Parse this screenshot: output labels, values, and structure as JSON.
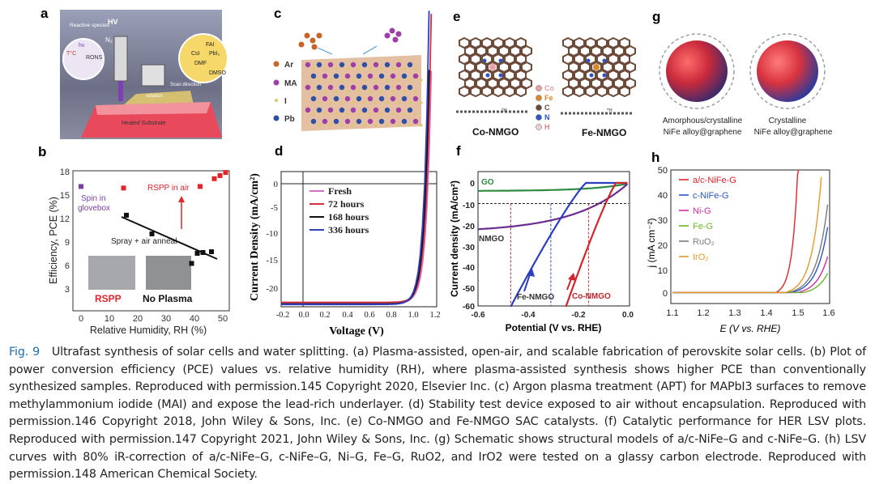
{
  "panels": {
    "a": {
      "label": "a",
      "hv": "HV",
      "n2": "N₂",
      "reactive": "Reactive species",
      "rons": "RONS",
      "temp": "T°C",
      "hv_light": "hν",
      "solution": "solution",
      "scan": "Scan direction",
      "substrate": "Heated Substrate",
      "chem": [
        "FAI",
        "CsI",
        "PbI₂",
        "DMF",
        "DMSO"
      ]
    },
    "b": {
      "label": "b",
      "ylabel": "Efficiency, PCE (%)",
      "xlabel": "Relative Humidity, RH (%)",
      "spin": "Spin in glovebox",
      "rspp_air": "RSPP in air",
      "spray": "Spray + air anneal",
      "rspp": "RSPP",
      "noplasma": "No Plasma",
      "yticks": [
        "18",
        "15",
        "12",
        "9",
        "6",
        "3"
      ],
      "xticks": [
        "0",
        "10",
        "20",
        "30",
        "40",
        "50"
      ]
    },
    "c": {
      "label": "c",
      "legend": [
        "Ar",
        "MA",
        "I",
        "Pb"
      ],
      "colors": [
        "#c8642a",
        "#9c3fa6",
        "#d9c86a",
        "#2e4fa3"
      ]
    },
    "d": {
      "label": "d",
      "ylabel": "Current Density (mA/cm²)",
      "xlabel": "Voltage (V)",
      "legend": [
        "Fresh",
        "72 hours",
        "168 hours",
        "336 hours"
      ],
      "colors": [
        "#d070c0",
        "#d03040",
        "#111111",
        "#2f3fbf"
      ],
      "yticks": [
        "0",
        "-5",
        "-10",
        "-15",
        "-20"
      ],
      "xticks": [
        "-0.2",
        "0.0",
        "0.2",
        "0.4",
        "0.6",
        "0.8",
        "1.0",
        "1.2"
      ]
    },
    "e": {
      "label": "e",
      "co": "Co-NMGO",
      "fe": "Fe-NMGO",
      "h1": "*H",
      "h2": "*H",
      "legend": [
        "Co",
        "Fe",
        "C",
        "N",
        "H"
      ]
    },
    "f": {
      "label": "f",
      "ylabel": "Current density (mA/cm²)",
      "xlabel": "Potential (V vs. RHE)",
      "go": "GO",
      "nmgo": "NMGO",
      "fe": "Fe-NMGO",
      "co": "Co-NMGO",
      "yticks": [
        "0",
        "-10",
        "-20",
        "-30",
        "-40",
        "-50",
        "-60"
      ],
      "xticks": [
        "-0.6",
        "-0.4",
        "-0.2",
        "0.0"
      ]
    },
    "g": {
      "label": "g",
      "cap1a": "Amorphous/crystalline",
      "cap1b": "NiFe alloy@graphene",
      "cap2a": "Crystalline",
      "cap2b": "NiFe alloy@graphene"
    },
    "h": {
      "label": "h",
      "ylabel": "j (mA cm⁻²)",
      "xlabel": "E (V vs. RHE)",
      "legend": [
        "a/c-NiFe-G",
        "c-NiFe-G",
        "Ni-G",
        "Fe-G",
        "RuO₂",
        "IrO₂"
      ],
      "colors": [
        "#e0252b",
        "#2b56c9",
        "#d02ea0",
        "#6cb32e",
        "#7b7b7b",
        "#e39a2a"
      ],
      "yticks": [
        "50",
        "40",
        "30",
        "20",
        "10",
        "0"
      ],
      "xticks": [
        "1.1",
        "1.2",
        "1.3",
        "1.4",
        "1.5",
        "1.6"
      ]
    }
  },
  "chart_data": [
    {
      "type": "scatter",
      "panel": "b",
      "title": "",
      "xlabel": "Relative Humidity, RH (%)",
      "ylabel": "Efficiency, PCE (%)",
      "xlim": [
        -2,
        53
      ],
      "ylim": [
        0,
        18
      ],
      "series": [
        {
          "name": "Spin in glovebox",
          "color": "#7b3fa6",
          "x": [
            0
          ],
          "y": [
            16
          ]
        },
        {
          "name": "RSPP in air",
          "color": "#e0252b",
          "x": [
            15,
            42,
            47,
            49,
            51
          ],
          "y": [
            15.8,
            16,
            17,
            17.4,
            17.8
          ]
        },
        {
          "name": "Spray + air anneal",
          "color": "#111111",
          "x": [
            16,
            25,
            39,
            41,
            43,
            46
          ],
          "y": [
            12.3,
            9.9,
            6.1,
            7.4,
            7.5,
            7.6
          ]
        }
      ]
    },
    {
      "type": "line",
      "panel": "d",
      "xlabel": "Voltage (V)",
      "ylabel": "Current Density (mA/cm²)",
      "xlim": [
        -0.2,
        1.2
      ],
      "ylim": [
        -23,
        2
      ],
      "series": [
        {
          "name": "Fresh",
          "voc": 1.13,
          "jsc": -22.3
        },
        {
          "name": "72 hours",
          "voc": 1.12,
          "jsc": -22.2
        },
        {
          "name": "168 hours",
          "voc": 1.11,
          "jsc": -22.5
        },
        {
          "name": "336 hours",
          "voc": 1.1,
          "jsc": -22.6
        }
      ]
    },
    {
      "type": "line",
      "panel": "f",
      "xlabel": "Potential (V vs. RHE)",
      "ylabel": "Current density (mA/cm²)",
      "xlim": [
        -0.6,
        0.0
      ],
      "ylim": [
        -60,
        5
      ],
      "series": [
        {
          "name": "GO",
          "onset": -0.1,
          "limit": -4
        },
        {
          "name": "NMGO",
          "onset": -0.1,
          "limit": -23
        },
        {
          "name": "Fe-NMGO",
          "onset": -0.2,
          "limit": -60
        },
        {
          "name": "Co-NMGO",
          "onset": -0.05,
          "limit": -60
        }
      ],
      "ref_line": -10,
      "ref_x": [
        -0.47,
        -0.31,
        -0.16
      ]
    },
    {
      "type": "line",
      "panel": "h",
      "xlabel": "E (V vs. RHE)",
      "ylabel": "j (mA cm⁻²)",
      "xlim": [
        1.1,
        1.6
      ],
      "ylim": [
        -3,
        50
      ],
      "series": [
        {
          "name": "a/c-NiFe-G",
          "onset": 1.43,
          "end": 1.51
        },
        {
          "name": "c-NiFe-G",
          "onset": 1.48,
          "end": 1.6
        },
        {
          "name": "Ni-G",
          "onset": 1.5,
          "end": 1.6
        },
        {
          "name": "Fe-G",
          "onset": 1.52,
          "end": 1.6
        },
        {
          "name": "RuO₂",
          "onset": 1.47,
          "end": 1.6
        },
        {
          "name": "IrO₂",
          "onset": 1.46,
          "end": 1.58
        }
      ]
    }
  ],
  "caption": {
    "figno": "Fig. 9",
    "text": "Ultrafast synthesis of solar cells and water splitting. (a) Plasma-assisted, open-air, and scalable fabrication of perovskite solar cells. (b) Plot of power conversion efficiency (PCE) values vs. relative humidity (RH), where plasma-assisted synthesis shows higher PCE than conventionally synthesized samples. Reproduced with permission.145 Copyright 2020, Elsevier Inc. (c) Argon plasma treatment (APT) for MAPbI3 surfaces to remove methylammonium iodide (MAI) and expose the lead-rich underlayer. (d) Stability test device exposed to air without encapsulation. Reproduced with permission.146 Copyright 2018, John Wiley & Sons, Inc. (e) Co-NMGO and Fe-NMGO SAC catalysts. (f) Catalytic performance for HER LSV plots. Reproduced with permission.147 Copyright 2021, John Wiley & Sons, Inc. (g) Schematic shows structural models of a/c-NiFe–G and c-NiFe–G. (h) LSV curves with 80% iR-correction of a/c-NiFe–G, c-NiFe–G, Ni–G, Fe–G, RuO2, and IrO2 were tested on a glassy carbon electrode. Reproduced with permission.148 American Chemical Society."
  }
}
